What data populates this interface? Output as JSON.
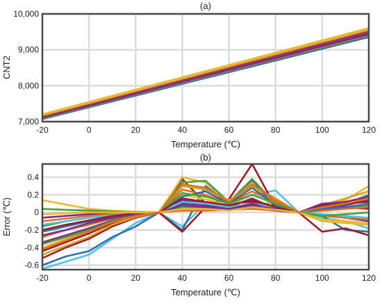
{
  "chart_data": [
    {
      "type": "line",
      "title": "(a)",
      "xlabel": "Temperature (℃)",
      "ylabel": "CNT2",
      "xlim": [
        -20,
        120
      ],
      "ylim": [
        7000,
        10000
      ],
      "xticks": [
        "-20",
        "0",
        "20",
        "40",
        "60",
        "80",
        "100",
        "120"
      ],
      "yticks": [
        "7,000",
        "8,000",
        "9,000",
        "10,000"
      ],
      "ytick_values": [
        7000,
        8000,
        9000,
        10000
      ],
      "grid": true,
      "x": [
        -20,
        120
      ],
      "band_series": [
        {
          "values": [
            7080,
            9360
          ],
          "color": "#2f6fb0"
        },
        {
          "values": [
            7100,
            9400
          ],
          "color": "#4aa03a"
        },
        {
          "values": [
            7110,
            9420
          ],
          "color": "#e07020"
        },
        {
          "values": [
            7120,
            9440
          ],
          "color": "#6f2a8c"
        },
        {
          "values": [
            7130,
            9460
          ],
          "color": "#7b2d8e"
        },
        {
          "values": [
            7140,
            9480
          ],
          "color": "#8a2b7e"
        },
        {
          "values": [
            7150,
            9500
          ],
          "color": "#7a2d8f"
        },
        {
          "values": [
            7160,
            9520
          ],
          "color": "#b03a78"
        },
        {
          "values": [
            7170,
            9540
          ],
          "color": "#9c2d2d"
        },
        {
          "values": [
            7180,
            9560
          ],
          "color": "#d4a52a"
        },
        {
          "values": [
            7200,
            9600
          ],
          "color": "#e8b830"
        }
      ]
    },
    {
      "type": "line",
      "title": "(b)",
      "xlabel": "Temperature (℃)",
      "ylabel": "Error (℃)",
      "xlim": [
        -20,
        120
      ],
      "ylim": [
        -0.65,
        0.55
      ],
      "xticks": [
        "-20",
        "0",
        "20",
        "40",
        "60",
        "80",
        "100",
        "120"
      ],
      "yticks": [
        "-0.6",
        "-0.4",
        "-0.2",
        "0",
        "0.2",
        "0.4"
      ],
      "ytick_values": [
        -0.6,
        -0.4,
        -0.2,
        0,
        0.2,
        0.4
      ],
      "grid": true,
      "x": [
        -20,
        -10,
        0,
        10,
        20,
        30,
        40,
        50,
        60,
        70,
        80,
        90,
        100,
        110,
        120
      ],
      "series": [
        {
          "color": "#4cc3ee",
          "values": [
            -0.64,
            -0.56,
            -0.48,
            -0.3,
            -0.12,
            0,
            -0.16,
            0.1,
            0.08,
            0.2,
            0.25,
            0,
            -0.06,
            -0.1,
            -0.18
          ]
        },
        {
          "color": "#2f6fb0",
          "values": [
            -0.6,
            -0.5,
            -0.44,
            -0.28,
            -0.16,
            0,
            -0.2,
            0.3,
            0.1,
            0.36,
            0.06,
            0,
            -0.04,
            -0.2,
            -0.22
          ]
        },
        {
          "color": "#9c1c22",
          "values": [
            -0.52,
            -0.4,
            -0.3,
            -0.16,
            -0.06,
            0,
            0.38,
            0.1,
            0.15,
            0.55,
            0.06,
            0,
            -0.22,
            -0.18,
            -0.26
          ]
        },
        {
          "color": "#9c1c22",
          "values": [
            -0.44,
            -0.34,
            -0.24,
            -0.12,
            -0.04,
            0,
            -0.22,
            0.06,
            0.1,
            0.12,
            0.08,
            0,
            0.02,
            0.06,
            0.04
          ]
        },
        {
          "color": "#e8b830",
          "values": [
            0.14,
            0.09,
            0.04,
            0.02,
            0.01,
            0,
            0.4,
            0.34,
            0.1,
            0.34,
            0.02,
            0,
            0.06,
            0.14,
            0.3
          ]
        },
        {
          "color": "#e8b830",
          "values": [
            -0.4,
            -0.3,
            -0.2,
            -0.1,
            -0.04,
            0,
            0.2,
            0.15,
            0.08,
            0.2,
            0.12,
            0,
            -0.1,
            -0.12,
            -0.14
          ]
        },
        {
          "color": "#4aa03a",
          "values": [
            0.04,
            0.03,
            0.02,
            0.01,
            0,
            0,
            0.34,
            0.36,
            0.12,
            0.38,
            0.1,
            0,
            0.02,
            0.04,
            0.08
          ]
        },
        {
          "color": "#4aa03a",
          "values": [
            -0.16,
            -0.1,
            -0.06,
            -0.03,
            -0.01,
            0,
            0.06,
            0.05,
            0.04,
            0.06,
            0.05,
            0,
            0.06,
            0.1,
            0.2
          ]
        },
        {
          "color": "#7b2d8e",
          "values": [
            -0.34,
            -0.26,
            -0.18,
            -0.09,
            -0.03,
            0,
            0.14,
            0.1,
            0.06,
            0.16,
            0.04,
            0,
            -0.02,
            -0.06,
            -0.1
          ]
        },
        {
          "color": "#7b2d8e",
          "values": [
            -0.06,
            -0.04,
            -0.02,
            -0.01,
            0,
            0,
            0.1,
            0.08,
            0.05,
            0.08,
            0.04,
            0,
            0.04,
            0.08,
            0.14
          ]
        },
        {
          "color": "#e07020",
          "values": [
            -0.28,
            -0.2,
            -0.14,
            -0.07,
            -0.02,
            0,
            0.26,
            0.2,
            0.1,
            0.24,
            0.12,
            0,
            0.02,
            0.04,
            0.06
          ]
        },
        {
          "color": "#e07020",
          "values": [
            -0.1,
            -0.07,
            -0.04,
            -0.02,
            -0.01,
            0,
            0.02,
            0.02,
            0.03,
            0.04,
            0.02,
            0,
            -0.04,
            -0.06,
            -0.08
          ]
        },
        {
          "color": "#2f6fb0",
          "values": [
            -0.22,
            -0.16,
            -0.1,
            -0.05,
            -0.02,
            0,
            0.18,
            0.24,
            0.1,
            0.28,
            0.08,
            0,
            0.04,
            0.06,
            0.1
          ]
        },
        {
          "color": "#4cc3ee",
          "values": [
            -0.14,
            -0.1,
            -0.06,
            -0.03,
            -0.01,
            0,
            0.12,
            0.1,
            0.06,
            0.1,
            0.06,
            0,
            -0.02,
            -0.04,
            -0.06
          ]
        },
        {
          "color": "#d4a52a",
          "values": [
            -0.48,
            -0.38,
            -0.28,
            -0.14,
            -0.05,
            0,
            0.3,
            0.26,
            0.14,
            0.3,
            0.16,
            0,
            0.08,
            0.16,
            0.24
          ]
        },
        {
          "color": "#4aa03a",
          "values": [
            -0.36,
            -0.28,
            -0.2,
            -0.1,
            -0.03,
            0,
            0.22,
            0.18,
            0.1,
            0.2,
            0.1,
            0,
            -0.04,
            -0.02,
            0
          ]
        },
        {
          "color": "#9c1c22",
          "values": [
            -0.2,
            -0.14,
            -0.09,
            -0.04,
            -0.01,
            0,
            0.16,
            0.12,
            0.08,
            0.14,
            0.06,
            0,
            0.08,
            0.1,
            0.12
          ]
        },
        {
          "color": "#7b2d8e",
          "values": [
            -0.26,
            -0.2,
            -0.12,
            -0.06,
            -0.02,
            0,
            0.08,
            0.06,
            0.04,
            0.1,
            0.02,
            0,
            0.1,
            0.12,
            0.18
          ]
        },
        {
          "color": "#e8b830",
          "values": [
            -0.02,
            -0.01,
            0,
            0,
            0,
            0,
            0.04,
            0.04,
            0.02,
            0.06,
            0.03,
            0,
            -0.08,
            -0.1,
            -0.12
          ]
        },
        {
          "color": "#e07020",
          "values": [
            -0.42,
            -0.32,
            -0.22,
            -0.11,
            -0.04,
            0,
            0.32,
            0.28,
            0.12,
            0.32,
            0.14,
            0,
            0.06,
            0.1,
            0.16
          ]
        }
      ]
    }
  ]
}
